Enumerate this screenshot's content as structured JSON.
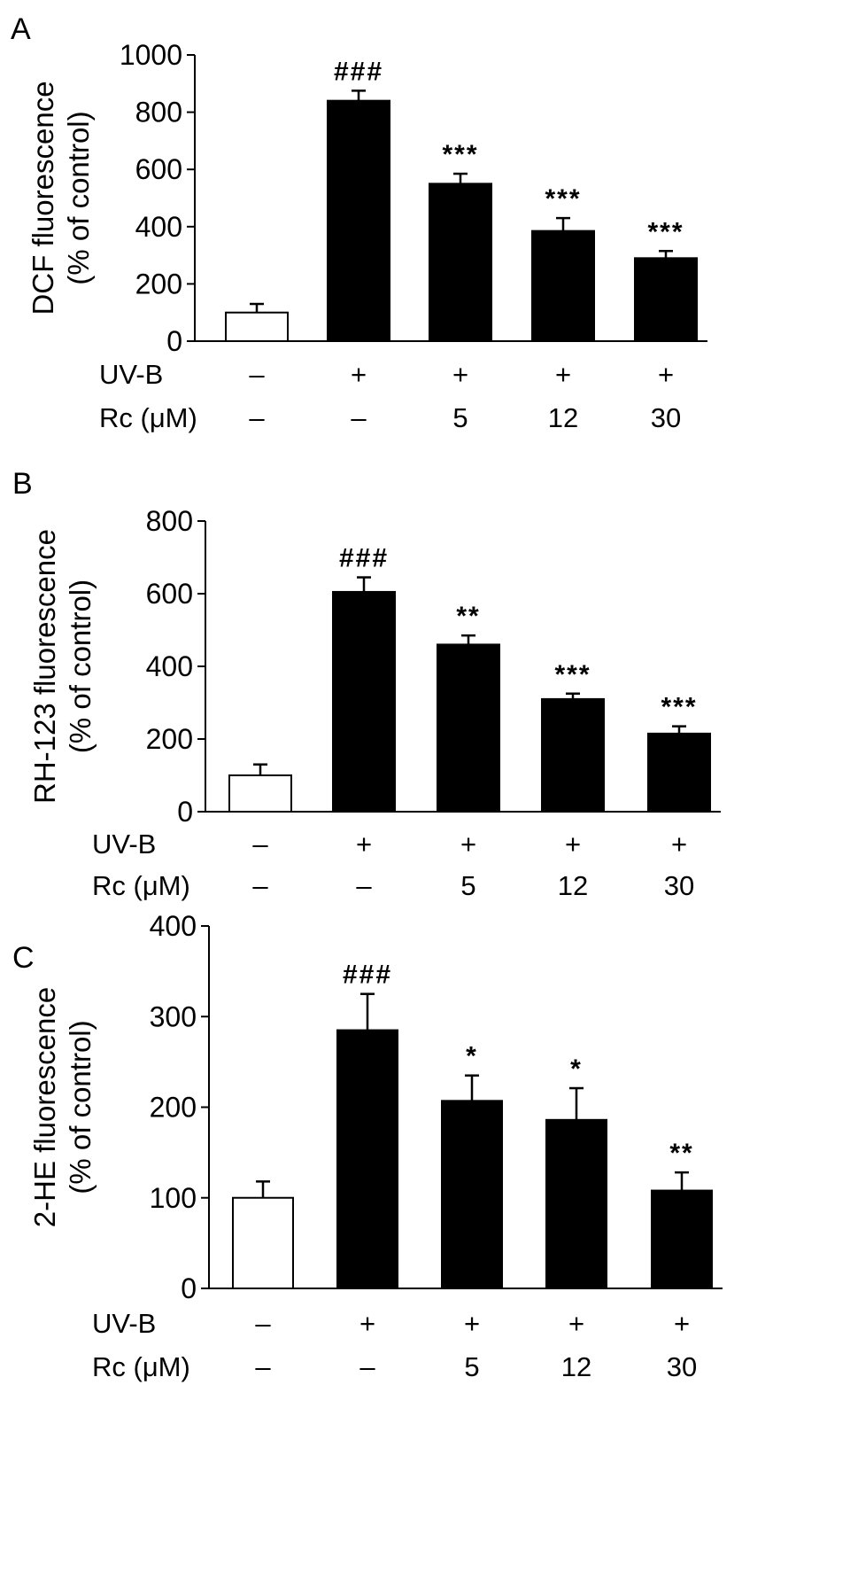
{
  "chart_data": [
    {
      "panel": "A",
      "type": "bar",
      "ylabel_line1": "DCF fluorescence",
      "ylabel_line2": "(% of control)",
      "ylim": [
        0,
        1000
      ],
      "yticks": [
        "0",
        "200",
        "400",
        "600",
        "800",
        "1000"
      ],
      "categories": [
        "1",
        "2",
        "3",
        "4",
        "5"
      ],
      "values": [
        100,
        840,
        550,
        385,
        290
      ],
      "errors": [
        30,
        35,
        35,
        45,
        25
      ],
      "fills": [
        "#ffffff",
        "#000000",
        "#000000",
        "#000000",
        "#000000"
      ],
      "significance": [
        "",
        "###",
        "***",
        "***",
        "***"
      ],
      "rows": [
        {
          "label": "UV-B",
          "cells": [
            "–",
            "+",
            "+",
            "+",
            "+"
          ]
        },
        {
          "label": "Rc (μM)",
          "cells": [
            "–",
            "–",
            "5",
            "12",
            "30"
          ]
        }
      ]
    },
    {
      "panel": "B",
      "type": "bar",
      "ylabel_line1": "RH-123 fluorescence",
      "ylabel_line2": "(% of control)",
      "ylim": [
        0,
        800
      ],
      "yticks": [
        "0",
        "200",
        "400",
        "600",
        "800"
      ],
      "categories": [
        "1",
        "2",
        "3",
        "4",
        "5"
      ],
      "values": [
        100,
        605,
        460,
        310,
        215
      ],
      "errors": [
        30,
        40,
        25,
        15,
        20
      ],
      "fills": [
        "#ffffff",
        "#000000",
        "#000000",
        "#000000",
        "#000000"
      ],
      "significance": [
        "",
        "###",
        "**",
        "***",
        "***"
      ],
      "rows": [
        {
          "label": "UV-B",
          "cells": [
            "–",
            "+",
            "+",
            "+",
            "+"
          ]
        },
        {
          "label": "Rc (μM)",
          "cells": [
            "–",
            "–",
            "5",
            "12",
            "30"
          ]
        }
      ]
    },
    {
      "panel": "C",
      "type": "bar",
      "ylabel_line1": "2-HE fluorescence",
      "ylabel_line2": "(% of control)",
      "ylim": [
        0,
        400
      ],
      "yticks": [
        "0",
        "100",
        "200",
        "300",
        "400"
      ],
      "categories": [
        "1",
        "2",
        "3",
        "4",
        "5"
      ],
      "values": [
        100,
        285,
        207,
        186,
        108
      ],
      "errors": [
        18,
        40,
        28,
        35,
        20
      ],
      "fills": [
        "#ffffff",
        "#000000",
        "#000000",
        "#000000",
        "#000000"
      ],
      "significance": [
        "",
        "###",
        "*",
        "*",
        "**"
      ],
      "rows": [
        {
          "label": "UV-B",
          "cells": [
            "–",
            "+",
            "+",
            "+",
            "+"
          ]
        },
        {
          "label": "Rc (μM)",
          "cells": [
            "–",
            "–",
            "5",
            "12",
            "30"
          ]
        }
      ]
    }
  ]
}
